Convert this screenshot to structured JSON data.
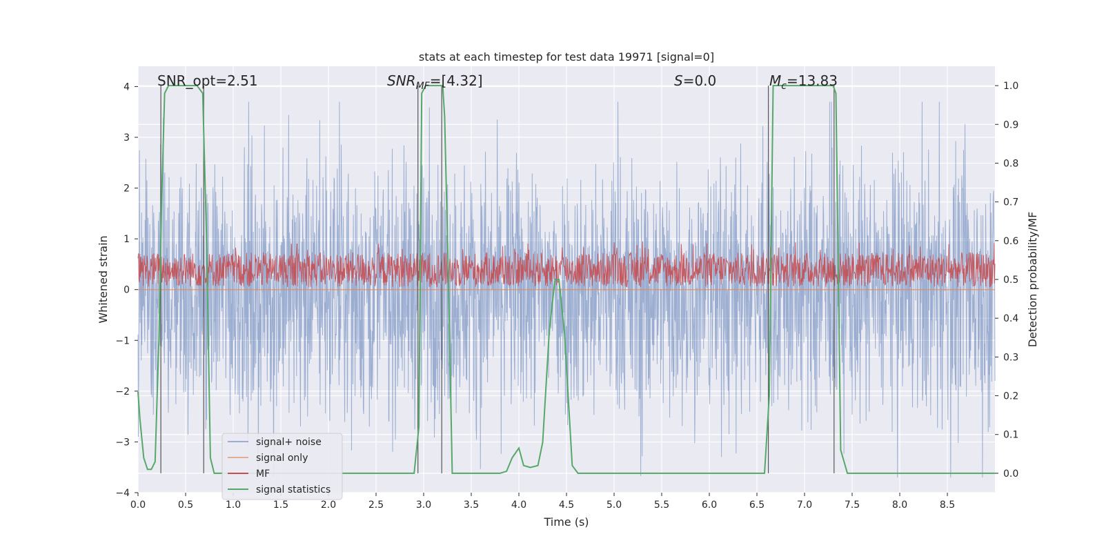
{
  "chart_data": {
    "type": "line",
    "title": "stats at each timestep for test data 19971 [signal=0]",
    "xlabel": "Time (s)",
    "ylabel_left": "Whitened strain",
    "ylabel_right": "Detection probability/MF",
    "xlim": [
      0.0,
      9.0
    ],
    "ylim_left": [
      -4.0,
      4.4
    ],
    "ylim_right": [
      -0.05,
      1.05
    ],
    "x_ticks": [
      "0.0",
      "0.5",
      "1.0",
      "1.5",
      "2.0",
      "2.5",
      "3.0",
      "3.5",
      "4.0",
      "4.5",
      "5.0",
      "5.5",
      "6.0",
      "6.5",
      "7.0",
      "7.5",
      "8.0",
      "8.5"
    ],
    "y_ticks_left": [
      "−4",
      "−3",
      "−2",
      "−1",
      "0",
      "1",
      "2",
      "3",
      "4"
    ],
    "y_ticks_right": [
      "0.0",
      "0.1",
      "0.2",
      "0.3",
      "0.4",
      "0.5",
      "0.6",
      "0.7",
      "0.8",
      "0.9",
      "1.0"
    ],
    "grid": true,
    "legend_position": "lower-left",
    "annotations": [
      {
        "text": "SNR_opt=2.51",
        "x": 0.2
      },
      {
        "text": "SNR_MF=[4.32]",
        "x": 2.6
      },
      {
        "text": "S=0.0",
        "x": 5.6
      },
      {
        "text": "M_c=13.83",
        "x": 6.6
      }
    ],
    "colors": {
      "background": "#eaeaf2",
      "grid": "#ffffff",
      "signal_noise": "#4c72b0",
      "signal_only": "#dd8452",
      "mf": "#c44e52",
      "statistics": "#55a868",
      "vline": "#555555"
    },
    "vertical_lines_x": [
      0.24,
      0.69,
      2.94,
      3.19,
      6.62,
      7.31
    ],
    "series": [
      {
        "name": "signal+ noise",
        "axis": "left",
        "description_range": [
          -3.6,
          3.6
        ]
      },
      {
        "name": "signal only",
        "axis": "left",
        "value": 0.0
      },
      {
        "name": "MF",
        "axis": "right",
        "value_range": [
          0.48,
          0.6
        ]
      },
      {
        "name": "signal statistics",
        "axis": "right",
        "x": [
          0.0,
          0.02,
          0.06,
          0.1,
          0.14,
          0.18,
          0.22,
          0.25,
          0.28,
          0.32,
          0.38,
          0.5,
          0.62,
          0.68,
          0.72,
          0.76,
          0.8,
          0.85,
          1.0,
          1.5,
          2.0,
          2.5,
          2.9,
          2.95,
          2.98,
          3.02,
          3.08,
          3.2,
          3.22,
          3.26,
          3.3,
          3.35,
          3.5,
          3.8,
          3.87,
          3.93,
          4.0,
          4.05,
          4.12,
          4.2,
          4.25,
          4.32,
          4.38,
          4.42,
          4.48,
          4.56,
          4.62,
          4.7,
          5.0,
          5.5,
          6.0,
          6.58,
          6.63,
          6.67,
          6.72,
          7.0,
          7.3,
          7.33,
          7.38,
          7.45,
          8.0,
          8.5,
          9.0
        ],
        "y": [
          0.21,
          0.14,
          0.04,
          0.01,
          0.01,
          0.03,
          0.35,
          0.72,
          0.98,
          1.0,
          1.0,
          1.0,
          1.0,
          0.98,
          0.6,
          0.04,
          0.0,
          0.0,
          0.0,
          0.0,
          0.0,
          0.0,
          0.0,
          0.12,
          0.98,
          1.0,
          1.0,
          1.0,
          0.92,
          0.5,
          0.0,
          0.0,
          0.0,
          0.0,
          0.005,
          0.04,
          0.065,
          0.02,
          0.015,
          0.02,
          0.08,
          0.37,
          0.5,
          0.5,
          0.36,
          0.02,
          0.0,
          0.0,
          0.0,
          0.0,
          0.0,
          0.0,
          0.2,
          1.0,
          1.0,
          1.0,
          1.0,
          0.98,
          0.06,
          0.0,
          0.0,
          0.0,
          0.0
        ]
      }
    ]
  }
}
